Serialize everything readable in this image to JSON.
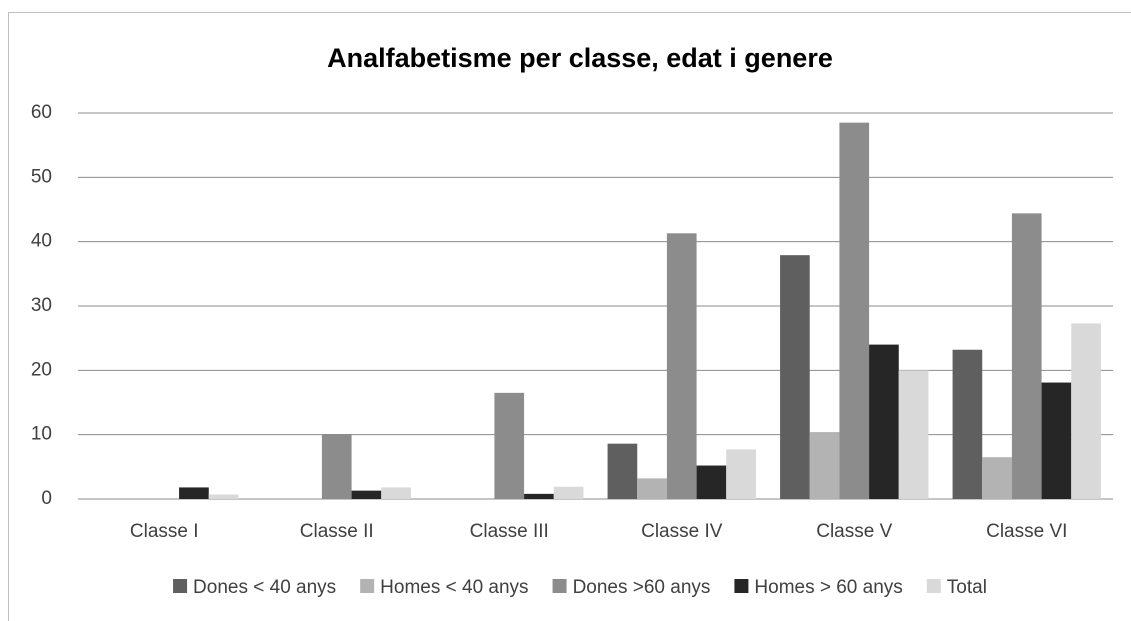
{
  "chart_data": {
    "type": "bar",
    "title": "Analfabetisme per classe, edat i genere",
    "categories": [
      "Classe I",
      "Classe II",
      "Classe III",
      "Classe IV",
      "Classe V",
      "Classe VI"
    ],
    "series": [
      {
        "name": "Dones < 40 anys",
        "color": "#5f5f5f",
        "values": [
          0,
          0,
          0,
          8.6,
          37.9,
          23.2
        ]
      },
      {
        "name": "Homes < 40 anys",
        "color": "#b3b3b3",
        "values": [
          0,
          0,
          0,
          3.2,
          10.4,
          6.5
        ]
      },
      {
        "name": "Dones >60 anys",
        "color": "#8c8c8c",
        "values": [
          0,
          10.1,
          16.5,
          41.3,
          58.5,
          44.4
        ]
      },
      {
        "name": "Homes > 60 anys",
        "color": "#262626",
        "values": [
          1.8,
          1.3,
          0.8,
          5.2,
          24,
          18.1
        ]
      },
      {
        "name": "Total",
        "color": "#d9d9d9",
        "values": [
          0.7,
          1.8,
          1.9,
          7.7,
          20,
          27.3
        ]
      }
    ],
    "ylim": [
      0,
      60
    ],
    "yticks": [
      0,
      10,
      20,
      30,
      40,
      50,
      60
    ],
    "grid": true,
    "legend": "bottom"
  }
}
